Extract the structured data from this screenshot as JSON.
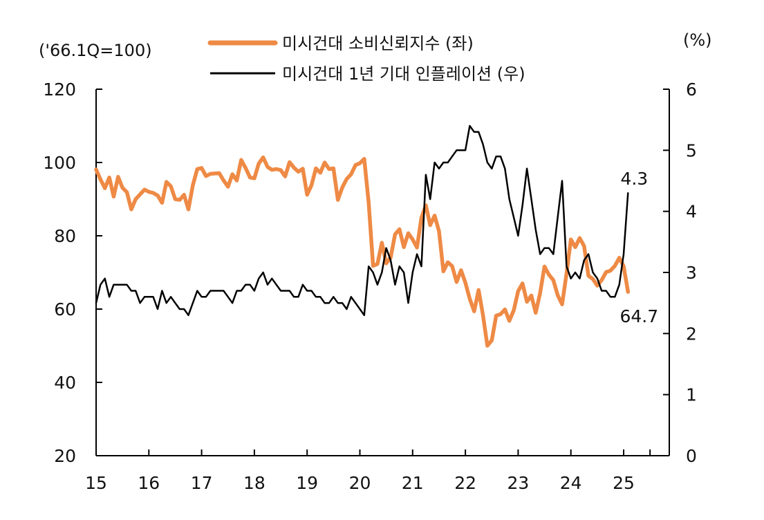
{
  "chart_data": {
    "type": "line",
    "left_axis": {
      "unit_label": "('66.1Q=100)",
      "min": 20,
      "max": 120,
      "ticks": [
        20,
        40,
        60,
        80,
        100,
        120
      ]
    },
    "right_axis": {
      "unit_label": "(%)",
      "min": 0,
      "max": 6,
      "ticks": [
        0,
        1,
        2,
        3,
        4,
        5,
        6
      ]
    },
    "x_axis": {
      "min": 2015,
      "max": 2026,
      "ticks": [
        2015,
        2016,
        2017,
        2018,
        2019,
        2020,
        2021,
        2022,
        2023,
        2024,
        2025
      ],
      "tick_labels": [
        "15",
        "16",
        "17",
        "18",
        "19",
        "20",
        "21",
        "22",
        "23",
        "24",
        "25"
      ]
    },
    "legend_position": "top-center",
    "series": [
      {
        "name": "미시건대 소비신뢰지수 (좌)",
        "axis": "left",
        "color": "#EE8A45",
        "end_label": "64.7",
        "x": [
          2015.0,
          2015.083,
          2015.167,
          2015.25,
          2015.333,
          2015.417,
          2015.5,
          2015.583,
          2015.667,
          2015.75,
          2015.833,
          2015.917,
          2016.0,
          2016.083,
          2016.167,
          2016.25,
          2016.333,
          2016.417,
          2016.5,
          2016.583,
          2016.667,
          2016.75,
          2016.833,
          2016.917,
          2017.0,
          2017.083,
          2017.167,
          2017.25,
          2017.333,
          2017.417,
          2017.5,
          2017.583,
          2017.667,
          2017.75,
          2017.833,
          2017.917,
          2018.0,
          2018.083,
          2018.167,
          2018.25,
          2018.333,
          2018.417,
          2018.5,
          2018.583,
          2018.667,
          2018.75,
          2018.833,
          2018.917,
          2019.0,
          2019.083,
          2019.167,
          2019.25,
          2019.333,
          2019.417,
          2019.5,
          2019.583,
          2019.667,
          2019.75,
          2019.833,
          2019.917,
          2020.0,
          2020.083,
          2020.167,
          2020.25,
          2020.333,
          2020.417,
          2020.5,
          2020.583,
          2020.667,
          2020.75,
          2020.833,
          2020.917,
          2021.0,
          2021.083,
          2021.167,
          2021.25,
          2021.333,
          2021.417,
          2021.5,
          2021.583,
          2021.667,
          2021.75,
          2021.833,
          2021.917,
          2022.0,
          2022.083,
          2022.167,
          2022.25,
          2022.333,
          2022.417,
          2022.5,
          2022.583,
          2022.667,
          2022.75,
          2022.833,
          2022.917,
          2023.0,
          2023.083,
          2023.167,
          2023.25,
          2023.333,
          2023.417,
          2023.5,
          2023.583,
          2023.667,
          2023.75,
          2023.833,
          2023.917,
          2024.0,
          2024.083,
          2024.167,
          2024.25,
          2024.333,
          2024.417,
          2024.5,
          2024.583,
          2024.667,
          2024.75,
          2024.833,
          2024.917,
          2025.0,
          2025.083
        ],
        "values": [
          98.1,
          95.4,
          93.0,
          95.9,
          90.7,
          96.1,
          93.1,
          91.9,
          87.2,
          90.0,
          91.3,
          92.6,
          92.0,
          91.7,
          91.0,
          89.0,
          94.7,
          93.5,
          90.0,
          89.8,
          91.2,
          87.2,
          93.8,
          98.2,
          98.5,
          96.3,
          96.9,
          97.0,
          97.1,
          95.1,
          93.4,
          96.8,
          95.1,
          100.7,
          98.5,
          95.9,
          95.7,
          99.7,
          101.4,
          98.8,
          98.0,
          98.2,
          97.9,
          96.2,
          100.1,
          98.6,
          97.5,
          98.3,
          91.2,
          93.8,
          98.4,
          97.2,
          100.0,
          98.2,
          98.4,
          89.8,
          93.2,
          95.5,
          96.8,
          99.3,
          99.8,
          101.0,
          89.1,
          71.8,
          72.3,
          78.1,
          72.5,
          74.1,
          80.4,
          81.8,
          76.9,
          80.7,
          79.0,
          76.8,
          84.9,
          88.3,
          82.9,
          85.5,
          81.2,
          70.3,
          72.8,
          71.7,
          67.4,
          70.6,
          67.2,
          62.8,
          59.4,
          65.2,
          58.4,
          50.0,
          51.5,
          58.2,
          58.6,
          59.9,
          56.8,
          59.7,
          64.9,
          67.0,
          62.0,
          63.7,
          59.0,
          64.4,
          71.6,
          69.4,
          67.9,
          63.8,
          61.3,
          69.7,
          79.0,
          76.9,
          79.4,
          77.2,
          69.1,
          68.2,
          66.4,
          67.9,
          70.1,
          70.5,
          71.8,
          74.0,
          71.7,
          64.7
        ]
      },
      {
        "name": "미시건대 1년 기대 인플레이션 (우)",
        "axis": "right",
        "color": "#000000",
        "end_label": "4.3",
        "x": [
          2015.0,
          2015.083,
          2015.167,
          2015.25,
          2015.333,
          2015.417,
          2015.5,
          2015.583,
          2015.667,
          2015.75,
          2015.833,
          2015.917,
          2016.0,
          2016.083,
          2016.167,
          2016.25,
          2016.333,
          2016.417,
          2016.5,
          2016.583,
          2016.667,
          2016.75,
          2016.833,
          2016.917,
          2017.0,
          2017.083,
          2017.167,
          2017.25,
          2017.333,
          2017.417,
          2017.5,
          2017.583,
          2017.667,
          2017.75,
          2017.833,
          2017.917,
          2018.0,
          2018.083,
          2018.167,
          2018.25,
          2018.333,
          2018.417,
          2018.5,
          2018.583,
          2018.667,
          2018.75,
          2018.833,
          2018.917,
          2019.0,
          2019.083,
          2019.167,
          2019.25,
          2019.333,
          2019.417,
          2019.5,
          2019.583,
          2019.667,
          2019.75,
          2019.833,
          2019.917,
          2020.0,
          2020.083,
          2020.167,
          2020.25,
          2020.333,
          2020.417,
          2020.5,
          2020.583,
          2020.667,
          2020.75,
          2020.833,
          2020.917,
          2021.0,
          2021.083,
          2021.167,
          2021.25,
          2021.333,
          2021.417,
          2021.5,
          2021.583,
          2021.667,
          2021.75,
          2021.833,
          2021.917,
          2022.0,
          2022.083,
          2022.167,
          2022.25,
          2022.333,
          2022.417,
          2022.5,
          2022.583,
          2022.667,
          2022.75,
          2022.833,
          2022.917,
          2023.0,
          2023.083,
          2023.167,
          2023.25,
          2023.333,
          2023.417,
          2023.5,
          2023.583,
          2023.667,
          2023.75,
          2023.833,
          2023.917,
          2024.0,
          2024.083,
          2024.167,
          2024.25,
          2024.333,
          2024.417,
          2024.5,
          2024.583,
          2024.667,
          2024.75,
          2024.833,
          2024.917,
          2025.0,
          2025.083
        ],
        "values": [
          2.5,
          2.8,
          2.9,
          2.6,
          2.8,
          2.8,
          2.8,
          2.8,
          2.7,
          2.7,
          2.5,
          2.6,
          2.6,
          2.6,
          2.4,
          2.7,
          2.5,
          2.6,
          2.5,
          2.4,
          2.4,
          2.3,
          2.5,
          2.7,
          2.6,
          2.6,
          2.7,
          2.7,
          2.7,
          2.7,
          2.6,
          2.5,
          2.7,
          2.7,
          2.8,
          2.8,
          2.7,
          2.9,
          3.0,
          2.8,
          2.9,
          2.8,
          2.7,
          2.7,
          2.7,
          2.6,
          2.6,
          2.8,
          2.7,
          2.7,
          2.6,
          2.6,
          2.5,
          2.5,
          2.6,
          2.5,
          2.5,
          2.4,
          2.6,
          2.5,
          2.4,
          2.3,
          3.1,
          3.0,
          2.8,
          3.0,
          3.4,
          3.2,
          2.8,
          3.1,
          3.0,
          2.5,
          3.0,
          3.3,
          3.1,
          4.6,
          4.2,
          4.8,
          4.7,
          4.8,
          4.8,
          4.9,
          5.0,
          5.0,
          5.0,
          5.4,
          5.3,
          5.3,
          5.1,
          4.8,
          4.7,
          4.9,
          4.9,
          4.7,
          4.2,
          3.9,
          3.6,
          4.1,
          4.7,
          4.2,
          3.7,
          3.3,
          3.4,
          3.4,
          3.3,
          3.9,
          4.5,
          3.1,
          2.9,
          3.0,
          2.9,
          3.2,
          3.3,
          3.0,
          2.9,
          2.7,
          2.7,
          2.6,
          2.6,
          2.8,
          3.3,
          4.3
        ]
      }
    ]
  }
}
